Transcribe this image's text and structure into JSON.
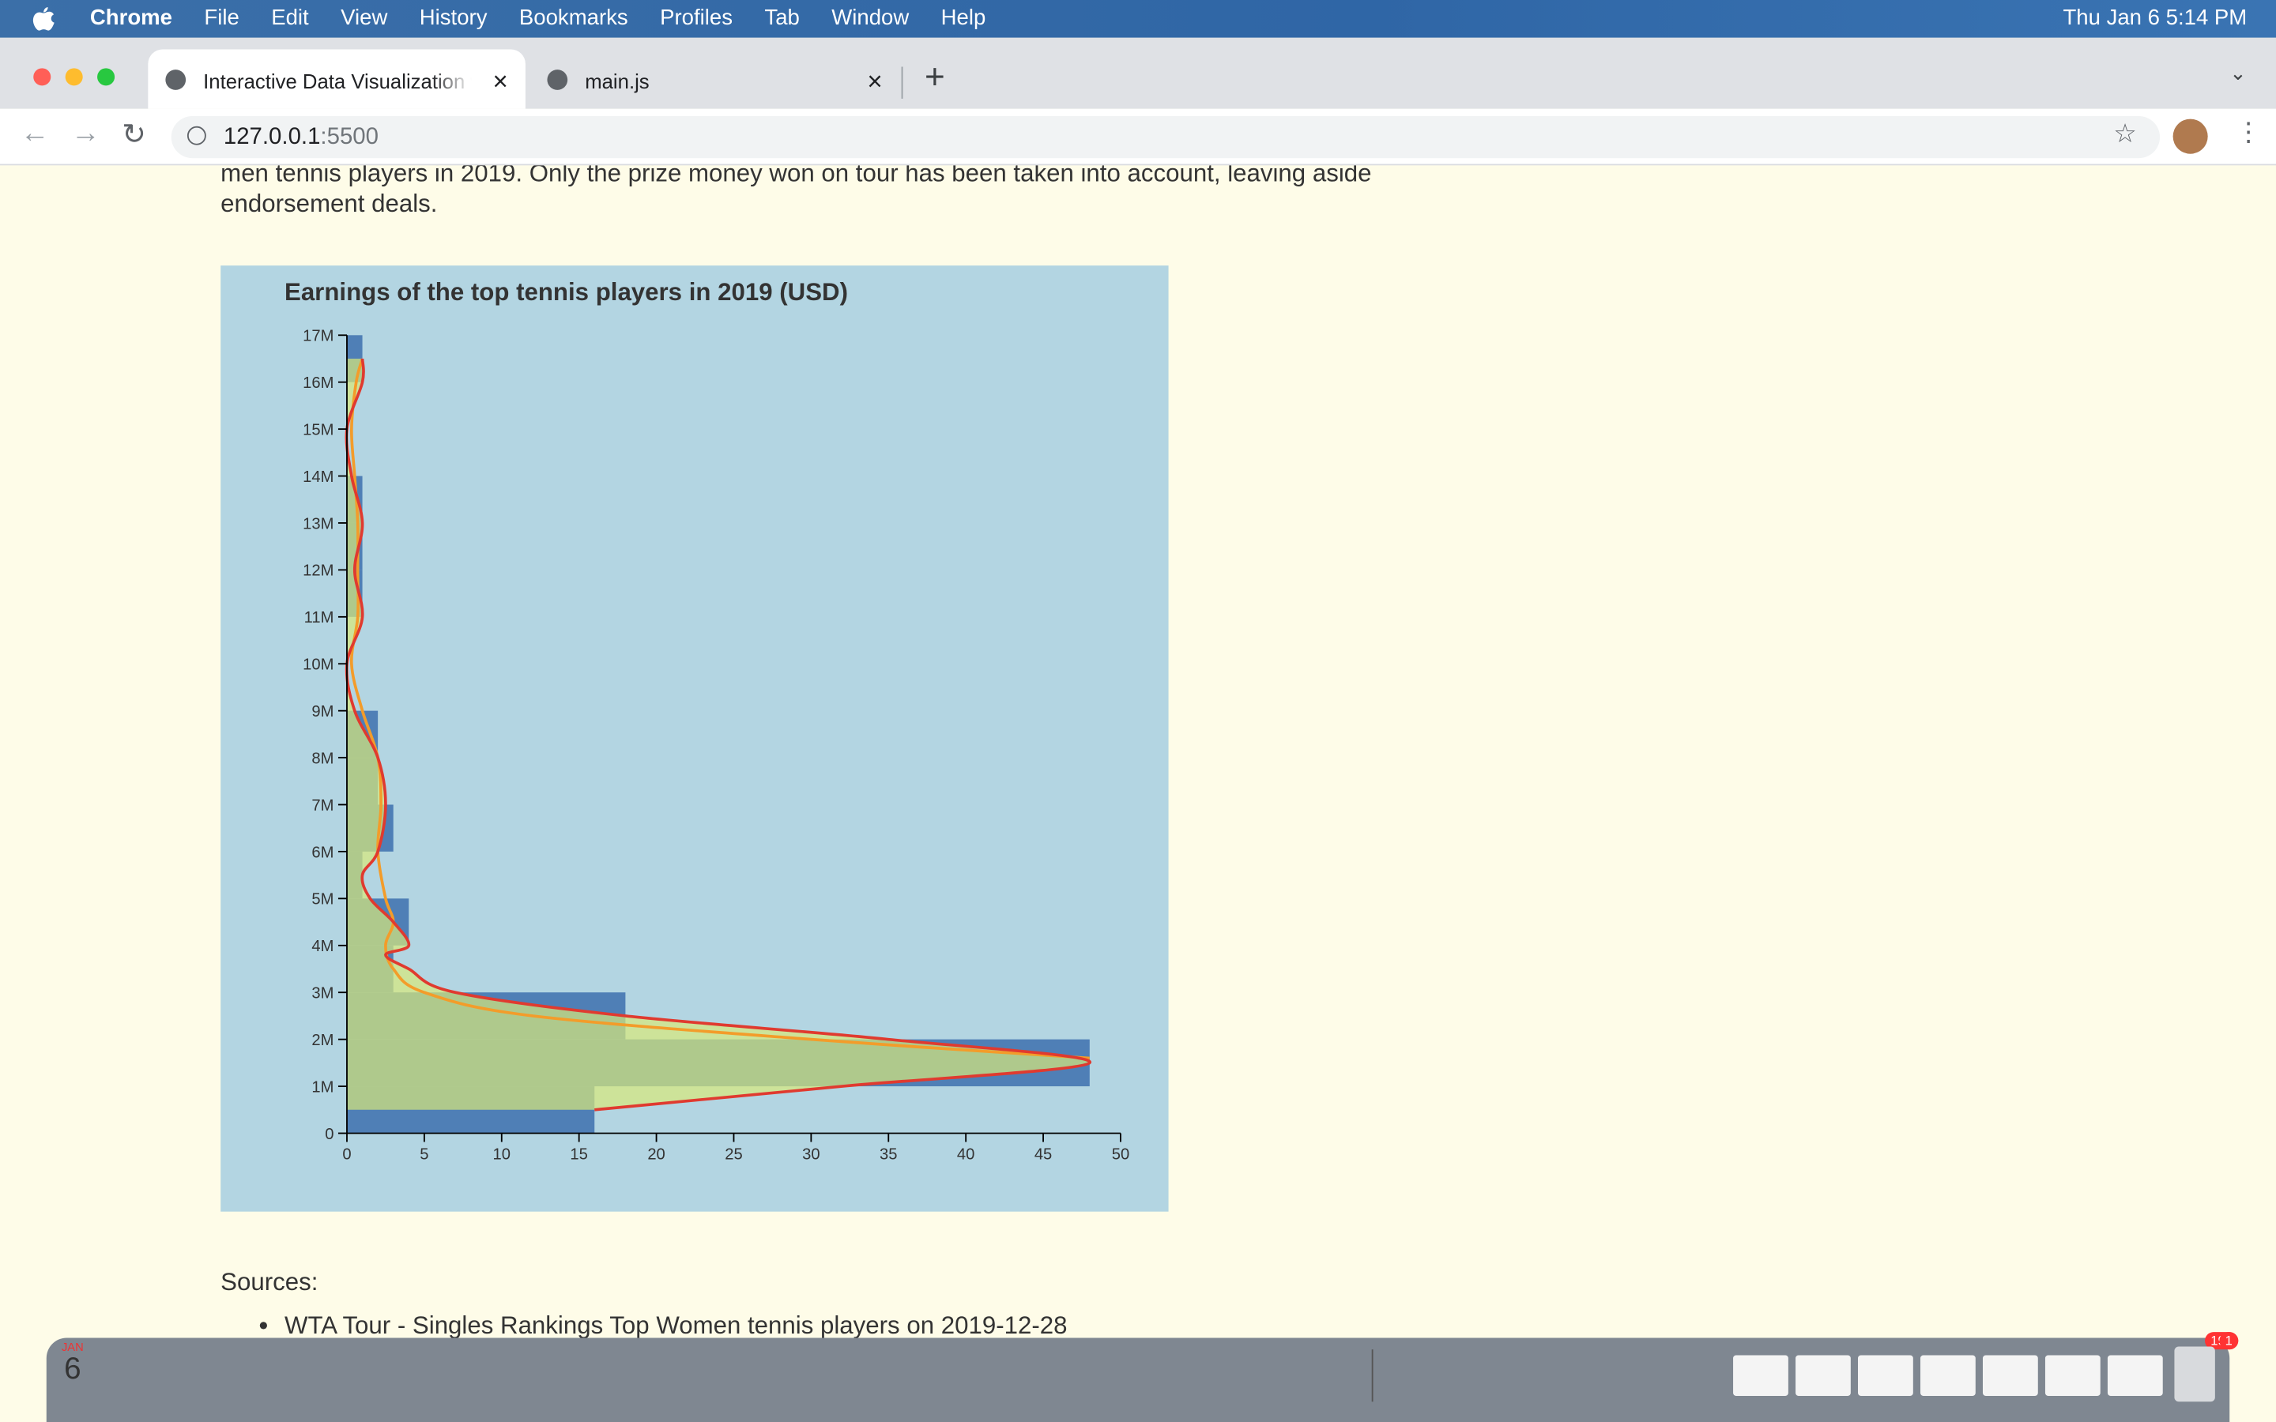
{
  "menu_bar": {
    "app": "Chrome",
    "items": [
      "File",
      "Edit",
      "View",
      "History",
      "Bookmarks",
      "Profiles",
      "Tab",
      "Window",
      "Help"
    ],
    "clock": "Thu Jan 6  5:14 PM"
  },
  "tabs": [
    {
      "title": "Interactive Data Visualization w"
    },
    {
      "title": "main.js"
    }
  ],
  "address": {
    "host": "127.0.0.1",
    "port": ":5500"
  },
  "content": {
    "intro_lines": [
      "men tennis players in 2019. Only the prize money won on tour has been taken into account, leaving aside",
      "endorsement deals."
    ],
    "sources_heading": "Sources:",
    "sources": [
      "WTA Tour - Singles Rankings Top Women tennis players on 2019-12-28"
    ]
  },
  "dock": {
    "mail_badge": "195",
    "calendar_month": "JAN",
    "calendar_day": "6",
    "settings_badge": "1"
  },
  "chart_data": {
    "type": "histogram",
    "title": "Earnings of the top tennis players in 2019 (USD)",
    "orientation": "horizontal",
    "bins": [
      0,
      1000000,
      2000000,
      3000000,
      4000000,
      5000000,
      6000000,
      7000000,
      8000000,
      9000000,
      10000000,
      11000000,
      12000000,
      13000000,
      14000000,
      15000000,
      16000000,
      17000000
    ],
    "counts": [
      16,
      48,
      18,
      3,
      4,
      1,
      3,
      2,
      2,
      0,
      0,
      1,
      1,
      1,
      0,
      0,
      1
    ],
    "color": "#4f7fb6",
    "xlim": [
      0,
      50
    ],
    "xticks": [
      0,
      5,
      10,
      15,
      20,
      25,
      30,
      35,
      40,
      45,
      50
    ],
    "ylim": [
      0,
      17000000
    ],
    "yticks": [
      0,
      {
        "value": 1000000,
        "label": "1M"
      },
      {
        "value": 2000000,
        "label": "2M"
      },
      {
        "value": 3000000,
        "label": "3M"
      },
      {
        "value": 4000000,
        "label": "4M"
      },
      {
        "value": 5000000,
        "label": "5M"
      },
      {
        "value": 6000000,
        "label": "6M"
      },
      {
        "value": 7000000,
        "label": "7M"
      },
      {
        "value": 8000000,
        "label": "8M"
      },
      {
        "value": 9000000,
        "label": "9M"
      },
      {
        "value": 10000000,
        "label": "10M"
      },
      {
        "value": 11000000,
        "label": "11M"
      },
      {
        "value": 12000000,
        "label": "12M"
      },
      {
        "value": 13000000,
        "label": "13M"
      },
      {
        "value": 14000000,
        "label": "14M"
      },
      {
        "value": 15000000,
        "label": "15M"
      },
      {
        "value": 16000000,
        "label": "16M"
      },
      {
        "value": 17000000,
        "label": "17M"
      }
    ],
    "curves": [
      {
        "color": "#e03a2f",
        "area_color": "#d8e87a",
        "values": [
          16,
          32,
          48,
          35,
          18,
          7,
          4,
          2.5,
          4,
          3,
          1.5,
          1,
          2,
          2.5,
          2,
          0.5,
          0,
          1,
          0.5,
          1,
          0.3,
          0,
          1,
          1
        ],
        "y": [
          500000,
          1000000,
          1500000,
          2000000,
          2500000,
          3000000,
          3500000,
          3800000,
          4000000,
          4500000,
          5000000,
          5500000,
          6000000,
          7000000,
          8000000,
          9000000,
          10000000,
          11000000,
          12000000,
          13000000,
          14000000,
          15000000,
          16000000,
          16500000
        ]
      },
      {
        "color": "#f39c2a",
        "values": [
          48,
          30,
          12,
          5,
          3,
          2.5,
          3,
          2.5,
          2,
          2.2,
          2,
          1,
          0.3,
          0.7,
          0.7,
          0.7,
          0.5,
          0.3,
          0.6,
          1
        ],
        "y": [
          1600000,
          2000000,
          2500000,
          3000000,
          3500000,
          4000000,
          4500000,
          5000000,
          6000000,
          7000000,
          8000000,
          9000000,
          10000000,
          11000000,
          12000000,
          13000000,
          14000000,
          15000000,
          16000000,
          16500000
        ]
      }
    ]
  }
}
